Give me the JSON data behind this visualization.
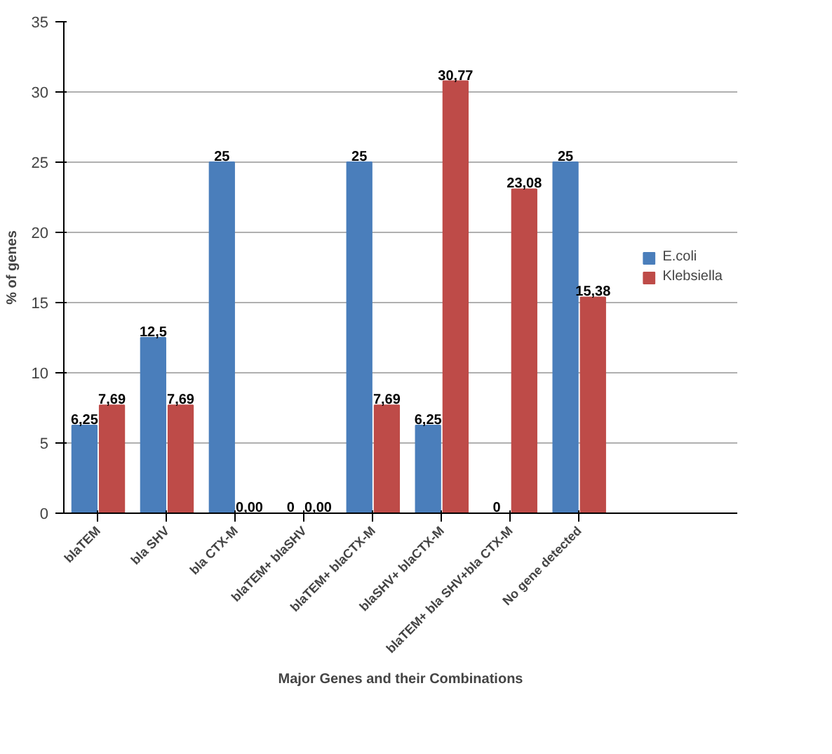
{
  "chart_data": {
    "type": "bar",
    "xlabel": "Major Genes and their Combinations",
    "ylabel": "% of genes",
    "categories": [
      "blaTEM",
      "bla SHV",
      "bla CTX-M",
      "blaTEM+ blaSHV",
      "blaTEM+ blaCTX-M",
      "blaSHV+ blaCTX-M",
      "blaTEM+ bla SHV+bla CTX-M",
      "No gene detected"
    ],
    "series": [
      {
        "name": "E.coli",
        "color": "#4a7ebb",
        "values": [
          6.25,
          12.5,
          25,
          0,
          25,
          6.25,
          0,
          25
        ],
        "value_labels": [
          "6,25",
          "12,5",
          "25",
          "0",
          "25",
          "6,25",
          "0",
          "25"
        ]
      },
      {
        "name": "Klebsiella",
        "color": "#be4b48",
        "values": [
          7.69,
          7.69,
          0,
          0,
          7.69,
          30.77,
          23.08,
          15.38
        ],
        "value_labels": [
          "7,69",
          "7,69",
          "0,00",
          "0,00",
          "7,69",
          "30,77",
          "23,08",
          "15,38"
        ]
      }
    ],
    "ylim": [
      0,
      35
    ],
    "yticks": [
      0,
      5,
      10,
      15,
      20,
      25,
      30,
      35
    ],
    "grid": "y",
    "legend": "right"
  }
}
